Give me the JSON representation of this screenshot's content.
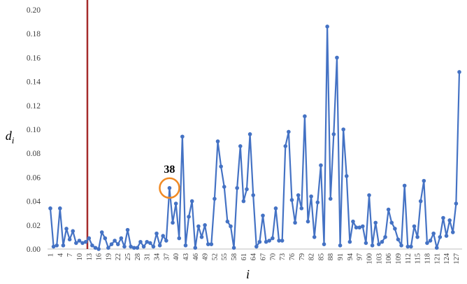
{
  "chart_data": {
    "type": "line",
    "title": "",
    "xlabel": "i",
    "ylabel_base": "d",
    "ylabel_sub": "i",
    "ylim": [
      0,
      0.2
    ],
    "y_ticks": [
      "0.00",
      "0.02",
      "0.04",
      "0.06",
      "0.08",
      "0.10",
      "0.12",
      "0.14",
      "0.16",
      "0.18",
      "0.20"
    ],
    "y_tick_values": [
      0,
      0.02,
      0.04,
      0.06,
      0.08,
      0.1,
      0.12,
      0.14,
      0.16,
      0.18,
      0.2
    ],
    "x_tick_labels": [
      1,
      4,
      7,
      10,
      13,
      16,
      19,
      22,
      25,
      28,
      31,
      34,
      37,
      40,
      43,
      46,
      49,
      52,
      55,
      58,
      61,
      64,
      67,
      70,
      73,
      76,
      79,
      82,
      85,
      88,
      91,
      94,
      97,
      100,
      103,
      106,
      109,
      112,
      115,
      118,
      121,
      124,
      127
    ],
    "grid": false,
    "legend": "none",
    "series": [
      {
        "color": "#4472C4",
        "x": [
          1,
          2,
          3,
          4,
          5,
          6,
          7,
          8,
          9,
          10,
          11,
          12,
          13,
          14,
          15,
          16,
          17,
          18,
          19,
          20,
          21,
          22,
          23,
          24,
          25,
          26,
          27,
          28,
          29,
          30,
          31,
          32,
          33,
          34,
          35,
          36,
          37,
          38,
          39,
          40,
          41,
          42,
          43,
          44,
          45,
          46,
          47,
          48,
          49,
          50,
          51,
          52,
          53,
          54,
          55,
          56,
          57,
          58,
          59,
          60,
          61,
          62,
          63,
          64,
          65,
          66,
          67,
          68,
          69,
          70,
          71,
          72,
          73,
          74,
          75,
          76,
          77,
          78,
          79,
          80,
          81,
          82,
          83,
          84,
          85,
          86,
          87,
          88,
          89,
          90,
          91,
          92,
          93,
          94,
          95,
          96,
          97,
          98,
          99,
          100,
          101,
          102,
          103,
          104,
          105,
          106,
          107,
          108,
          109,
          110,
          111,
          112,
          113,
          114,
          115,
          116,
          117,
          118,
          119,
          120,
          121,
          122,
          123,
          124,
          125,
          126,
          127,
          128
        ],
        "values": [
          0.034,
          0.002,
          0.003,
          0.034,
          0.003,
          0.017,
          0.008,
          0.015,
          0.005,
          0.007,
          0.005,
          0.006,
          0.009,
          0.003,
          0.001,
          0.0,
          0.014,
          0.009,
          0.001,
          0.004,
          0.007,
          0.004,
          0.009,
          0.002,
          0.016,
          0.002,
          0.001,
          0.001,
          0.006,
          0.002,
          0.006,
          0.005,
          0.002,
          0.013,
          0.003,
          0.011,
          0.007,
          0.051,
          0.022,
          0.038,
          0.009,
          0.094,
          0.003,
          0.027,
          0.04,
          0.001,
          0.019,
          0.01,
          0.02,
          0.004,
          0.004,
          0.042,
          0.09,
          0.069,
          0.052,
          0.023,
          0.019,
          0.001,
          0.051,
          0.086,
          0.04,
          0.05,
          0.096,
          0.045,
          0.002,
          0.006,
          0.028,
          0.006,
          0.007,
          0.009,
          0.034,
          0.007,
          0.007,
          0.086,
          0.098,
          0.041,
          0.022,
          0.045,
          0.034,
          0.111,
          0.023,
          0.044,
          0.01,
          0.039,
          0.07,
          0.004,
          0.186,
          0.042,
          0.096,
          0.16,
          0.003,
          0.1,
          0.061,
          0.006,
          0.023,
          0.018,
          0.018,
          0.019,
          0.005,
          0.045,
          0.003,
          0.022,
          0.004,
          0.006,
          0.01,
          0.033,
          0.022,
          0.017,
          0.008,
          0.003,
          0.053,
          0.002,
          0.002,
          0.019,
          0.01,
          0.04,
          0.057,
          0.005,
          0.007,
          0.013,
          0.001,
          0.01,
          0.026,
          0.011,
          0.024,
          0.014,
          0.038,
          0.148
        ]
      }
    ],
    "vertical_line": {
      "x": 12.5,
      "color": "#A52A2A"
    },
    "annotation": {
      "label": "38",
      "x": 38,
      "y": 0.051,
      "circle_color": "#F08A24"
    }
  }
}
